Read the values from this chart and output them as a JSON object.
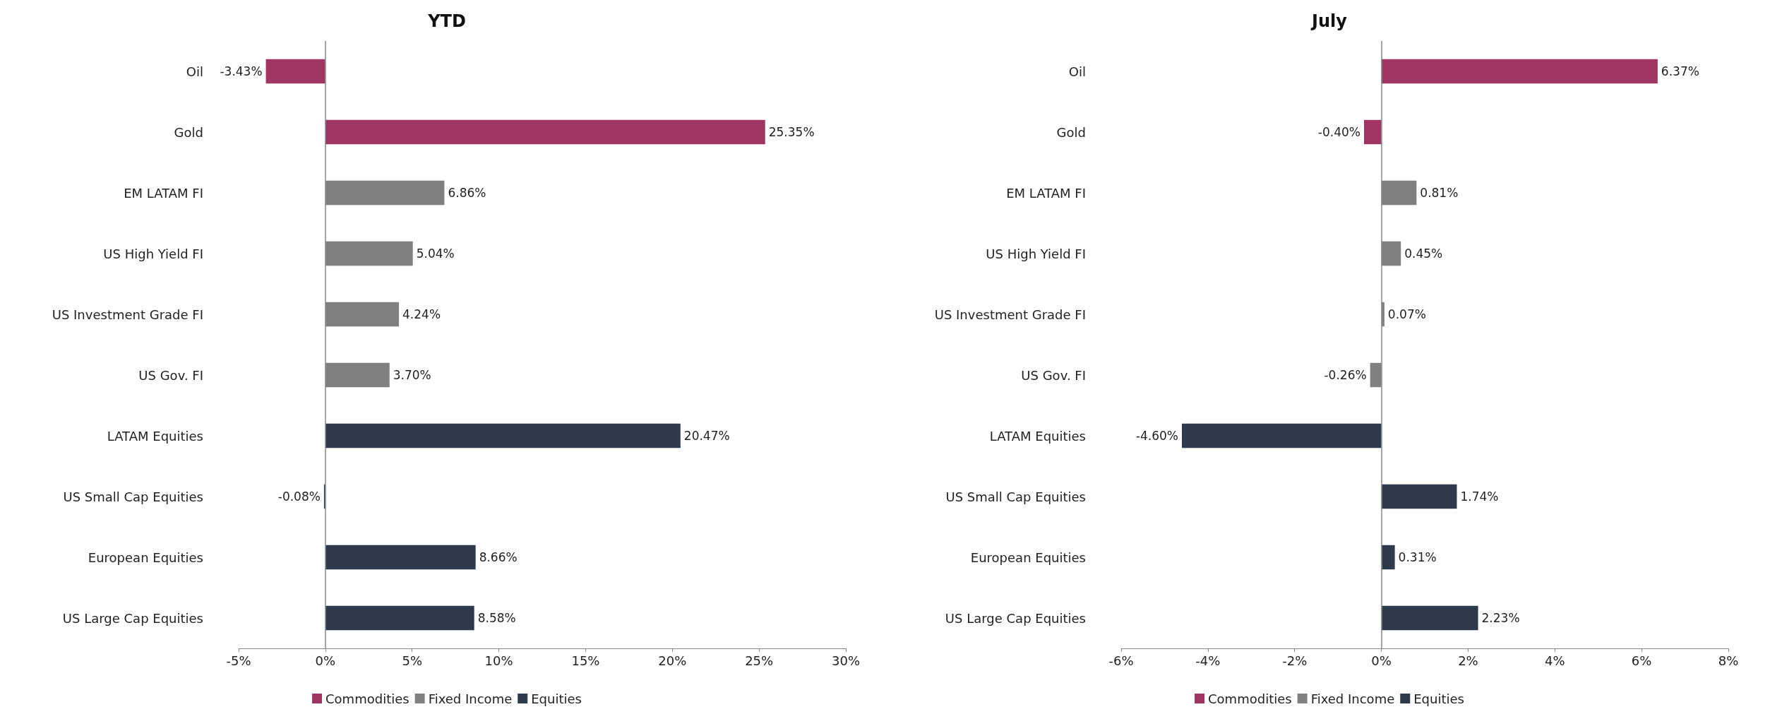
{
  "chart_data": [
    {
      "type": "bar",
      "title": "YTD",
      "orientation": "horizontal",
      "stacked": true,
      "legend": "bottom",
      "grid": false,
      "categories": [
        "Oil",
        "Gold",
        "EM LATAM FI",
        "US High Yield FI",
        "US Investment Grade FI",
        "US Gov. FI",
        "LATAM Equities",
        "US Small Cap Equities",
        "European Equities",
        "US Large Cap Equities"
      ],
      "series": [
        {
          "name": "Commodities",
          "color": "#9e3563",
          "values": [
            -3.43,
            25.35,
            null,
            null,
            null,
            null,
            null,
            null,
            null,
            null
          ],
          "value_labels": [
            "-3.43%",
            "25.35%",
            null,
            null,
            null,
            null,
            null,
            null,
            null,
            null
          ]
        },
        {
          "name": "Fixed Income",
          "color": "#808080",
          "values": [
            null,
            null,
            6.86,
            5.04,
            4.24,
            3.7,
            null,
            null,
            null,
            null
          ],
          "value_labels": [
            null,
            null,
            "6.86%",
            "5.04%",
            "4.24%",
            "3.70%",
            null,
            null,
            null,
            null
          ]
        },
        {
          "name": "Equities",
          "color": "#2e3a4b",
          "values": [
            null,
            null,
            null,
            null,
            null,
            null,
            20.47,
            -0.08,
            8.66,
            8.58
          ],
          "value_labels": [
            null,
            null,
            null,
            null,
            null,
            null,
            "20.47%",
            "-0.08%",
            "8.66%",
            "8.58%"
          ]
        }
      ],
      "ref_lines": [
        {
          "axis": "x",
          "value": 0,
          "color": "#888888"
        }
      ],
      "xlim": [
        -5,
        30
      ],
      "xticks": [
        {
          "value": -5,
          "label": "-5%"
        },
        {
          "value": 0,
          "label": "0%"
        },
        {
          "value": 5,
          "label": "5%"
        },
        {
          "value": 10,
          "label": "10%"
        },
        {
          "value": 15,
          "label": "15%"
        },
        {
          "value": 20,
          "label": "20%"
        },
        {
          "value": 25,
          "label": "25%"
        },
        {
          "value": 30,
          "label": "30%"
        }
      ]
    },
    {
      "type": "bar",
      "title": "July",
      "orientation": "horizontal",
      "stacked": true,
      "legend": "bottom",
      "grid": false,
      "categories": [
        "Oil",
        "Gold",
        "EM LATAM FI",
        "US High Yield FI",
        "US Investment Grade FI",
        "US Gov. FI",
        "LATAM Equities",
        "US Small Cap Equities",
        "European Equities",
        "US Large Cap Equities"
      ],
      "series": [
        {
          "name": "Commodities",
          "color": "#9e3563",
          "values": [
            6.37,
            -0.4,
            null,
            null,
            null,
            null,
            null,
            null,
            null,
            null
          ],
          "value_labels": [
            "6.37%",
            "-0.40%",
            null,
            null,
            null,
            null,
            null,
            null,
            null,
            null
          ]
        },
        {
          "name": "Fixed Income",
          "color": "#808080",
          "values": [
            null,
            null,
            0.81,
            0.45,
            0.07,
            -0.26,
            null,
            null,
            null,
            null
          ],
          "value_labels": [
            null,
            null,
            "0.81%",
            "0.45%",
            "0.07%",
            "-0.26%",
            null,
            null,
            null,
            null
          ]
        },
        {
          "name": "Equities",
          "color": "#2e3a4b",
          "values": [
            null,
            null,
            null,
            null,
            null,
            null,
            -4.6,
            1.74,
            0.31,
            2.23
          ],
          "value_labels": [
            null,
            null,
            null,
            null,
            null,
            null,
            "-4.60%",
            "1.74%",
            "0.31%",
            "2.23%"
          ]
        }
      ],
      "ref_lines": [
        {
          "axis": "x",
          "value": 0,
          "color": "#888888"
        }
      ],
      "xlim": [
        -6,
        8
      ],
      "xticks": [
        {
          "value": -6,
          "label": "-6%"
        },
        {
          "value": -4,
          "label": "-4%"
        },
        {
          "value": -2,
          "label": "-2%"
        },
        {
          "value": 0,
          "label": "0%"
        },
        {
          "value": 2,
          "label": "2%"
        },
        {
          "value": 4,
          "label": "4%"
        },
        {
          "value": 6,
          "label": "6%"
        },
        {
          "value": 8,
          "label": "8%"
        }
      ]
    }
  ]
}
